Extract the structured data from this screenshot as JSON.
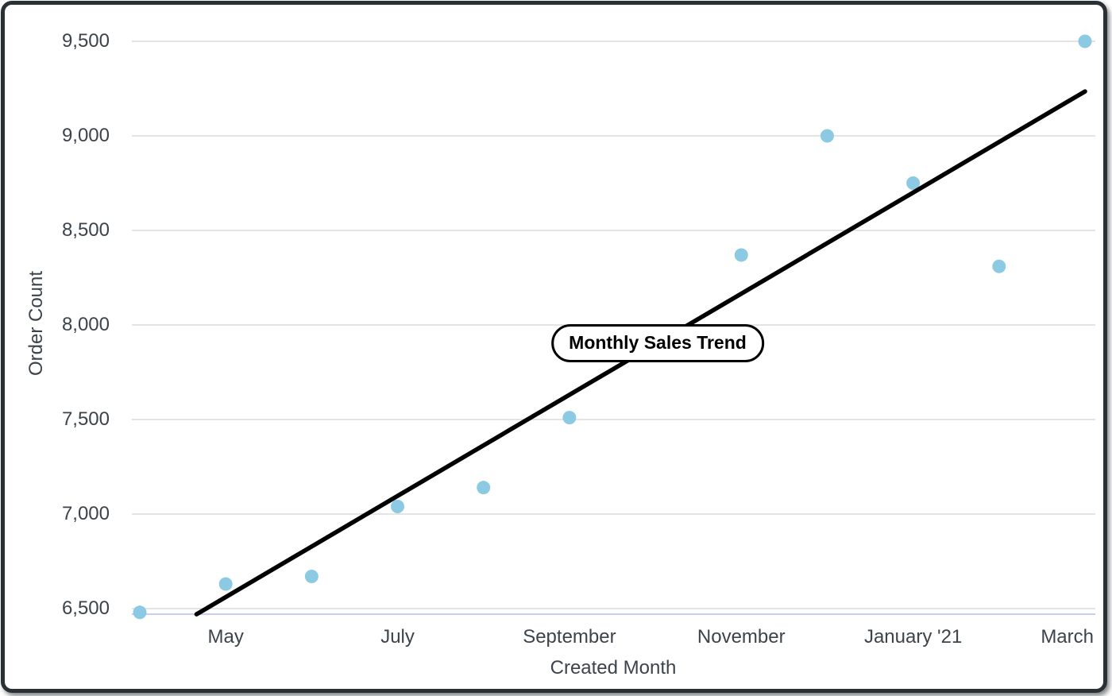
{
  "chart_data": {
    "type": "scatter",
    "title": "Monthly Sales Trend",
    "xlabel": "Created Month",
    "ylabel": "Order Count",
    "ylim": [
      6500,
      9500
    ],
    "grid": true,
    "y_axis": {
      "tick_values": [
        6500,
        7000,
        7500,
        8000,
        8500,
        9000,
        9500
      ],
      "tick_labels": [
        "6,500",
        "7,000",
        "7,500",
        "8,000",
        "8,500",
        "9,000",
        "9,500"
      ]
    },
    "x_axis": {
      "tick_month_indices": [
        1,
        3,
        5,
        7,
        9,
        11
      ],
      "tick_labels": [
        "May",
        "July",
        "September",
        "November",
        "January '21",
        "March"
      ]
    },
    "points": [
      {
        "month": "April",
        "month_index": 0,
        "value": 6480
      },
      {
        "month": "May",
        "month_index": 1,
        "value": 6630
      },
      {
        "month": "June",
        "month_index": 2,
        "value": 6670
      },
      {
        "month": "July",
        "month_index": 3,
        "value": 7040
      },
      {
        "month": "August",
        "month_index": 4,
        "value": 7140
      },
      {
        "month": "September",
        "month_index": 5,
        "value": 7510
      },
      {
        "month": "November",
        "month_index": 7,
        "value": 8370
      },
      {
        "month": "December",
        "month_index": 8,
        "value": 9000
      },
      {
        "month": "January '21",
        "month_index": 9,
        "value": 8750
      },
      {
        "month": "February",
        "month_index": 10,
        "value": 8310
      },
      {
        "month": "March",
        "month_index": 11,
        "value": 9500
      }
    ],
    "trendline": {
      "start": {
        "month_index": 0.66,
        "value": 6470
      },
      "end": {
        "month_index": 11.0,
        "value": 9235
      }
    },
    "colors": {
      "point": "#8ccae4",
      "trendline": "#000000",
      "gridline": "#e4e4e4",
      "axis_line": "#c7d0e8",
      "text": "#3c434a",
      "card_border": "#2a3134"
    }
  }
}
